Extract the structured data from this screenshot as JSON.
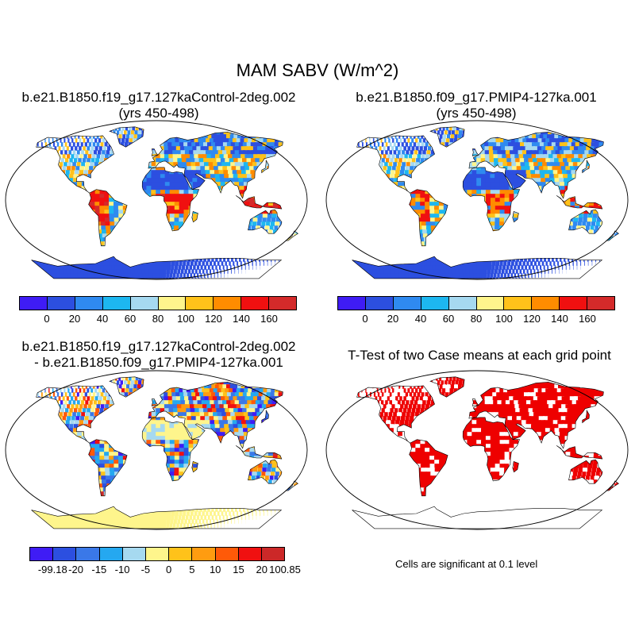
{
  "main_title": "MAM SABV (W/m^2)",
  "panels": {
    "top_left": {
      "title_line1": "b.e21.B1850.f19_g17.127kaControl-2deg.002",
      "title_line2": "(yrs 450-498)"
    },
    "top_right": {
      "title_line1": "b.e21.B1850.f09_g17.PMIP4-127ka.001",
      "title_line2": "(yrs 450-498)"
    },
    "bottom_left": {
      "title_line1": "b.e21.B1850.f19_g17.127kaControl-2deg.002",
      "title_line2": "- b.e21.B1850.f09_g17.PMIP4-127ka.001"
    },
    "bottom_right": {
      "title_line1": "T-Test of two Case means at each grid point"
    }
  },
  "colorbars": {
    "abs": {
      "colors": [
        "#3f1cf5",
        "#2c4fe0",
        "#2f8af0",
        "#1db7f0",
        "#a6d9f0",
        "#fef58c",
        "#ffc21a",
        "#ff8c00",
        "#f01010",
        "#d42a2a"
      ],
      "labels": [
        "0",
        "20",
        "40",
        "60",
        "80",
        "100",
        "120",
        "140",
        "160"
      ]
    },
    "diff": {
      "colors": [
        "#3f1cf5",
        "#2c4fe0",
        "#3a78e8",
        "#25a8f0",
        "#a6d9f0",
        "#fef58c",
        "#ffc21a",
        "#ff9c10",
        "#ff5a08",
        "#f01010",
        "#cc2828"
      ],
      "labels": [
        "-99.18",
        "-20",
        "-15",
        "-10",
        "-5",
        "0",
        "5",
        "10",
        "15",
        "20",
        "100.85"
      ]
    }
  },
  "significance_note": "Cells are significant at 0.1 level",
  "significance_color": "#ee0000"
}
